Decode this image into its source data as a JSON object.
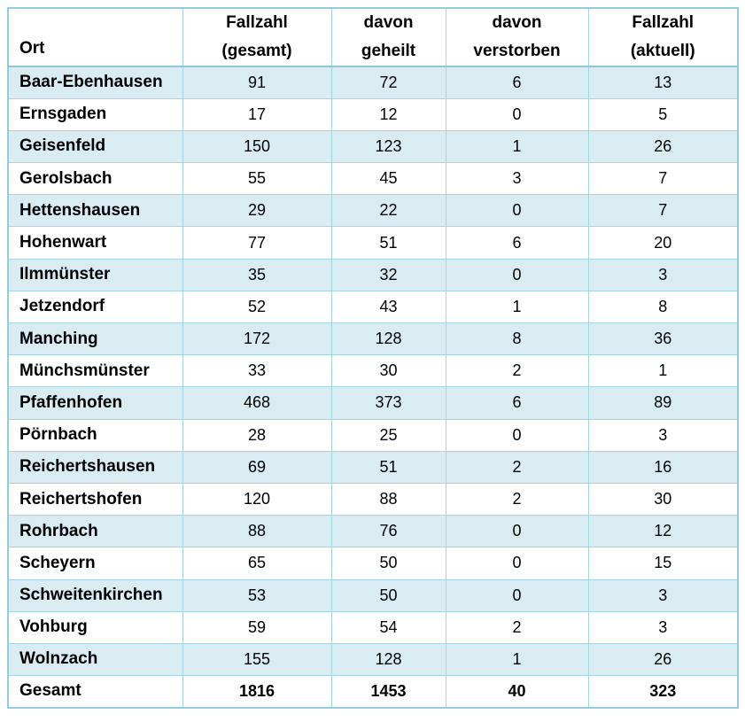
{
  "chart_data": {
    "type": "table",
    "title": "",
    "columns": [
      "Ort",
      "Fallzahl (gesamt)",
      "davon geheilt",
      "davon verstorben",
      "Fallzahl (aktuell)"
    ],
    "rows": [
      [
        "Baar-Ebenhausen",
        91,
        72,
        6,
        13
      ],
      [
        "Ernsgaden",
        17,
        12,
        0,
        5
      ],
      [
        "Geisenfeld",
        150,
        123,
        1,
        26
      ],
      [
        "Gerolsbach",
        55,
        45,
        3,
        7
      ],
      [
        "Hettenshausen",
        29,
        22,
        0,
        7
      ],
      [
        "Hohenwart",
        77,
        51,
        6,
        20
      ],
      [
        "Ilmmünster",
        35,
        32,
        0,
        3
      ],
      [
        "Jetzendorf",
        52,
        43,
        1,
        8
      ],
      [
        "Manching",
        172,
        128,
        8,
        36
      ],
      [
        "Münchsmünster",
        33,
        30,
        2,
        1
      ],
      [
        "Pfaffenhofen",
        468,
        373,
        6,
        89
      ],
      [
        "Pörnbach",
        28,
        25,
        0,
        3
      ],
      [
        "Reichertshausen",
        69,
        51,
        2,
        16
      ],
      [
        "Reichertshofen",
        120,
        88,
        2,
        30
      ],
      [
        "Rohrbach",
        88,
        76,
        0,
        12
      ],
      [
        "Scheyern",
        65,
        50,
        0,
        15
      ],
      [
        "Schweitenkirchen",
        53,
        50,
        0,
        3
      ],
      [
        "Vohburg",
        59,
        54,
        2,
        3
      ],
      [
        "Wolnzach",
        155,
        128,
        1,
        26
      ]
    ],
    "total": [
      "Gesamt",
      1816,
      1453,
      40,
      323
    ]
  },
  "table": {
    "header_display": [
      "Ort",
      "Fallzahl\n(gesamt)",
      "davon\ngeheilt",
      "davon\nverstorben",
      "Fallzahl\n(aktuell)"
    ]
  },
  "colors": {
    "row_shade": "#d9ecf2",
    "border": "#a4d4e2",
    "header_separator": "#8fc6d9",
    "outer_border": "#96cdde",
    "text": "#000000",
    "background": "#ffffff"
  }
}
